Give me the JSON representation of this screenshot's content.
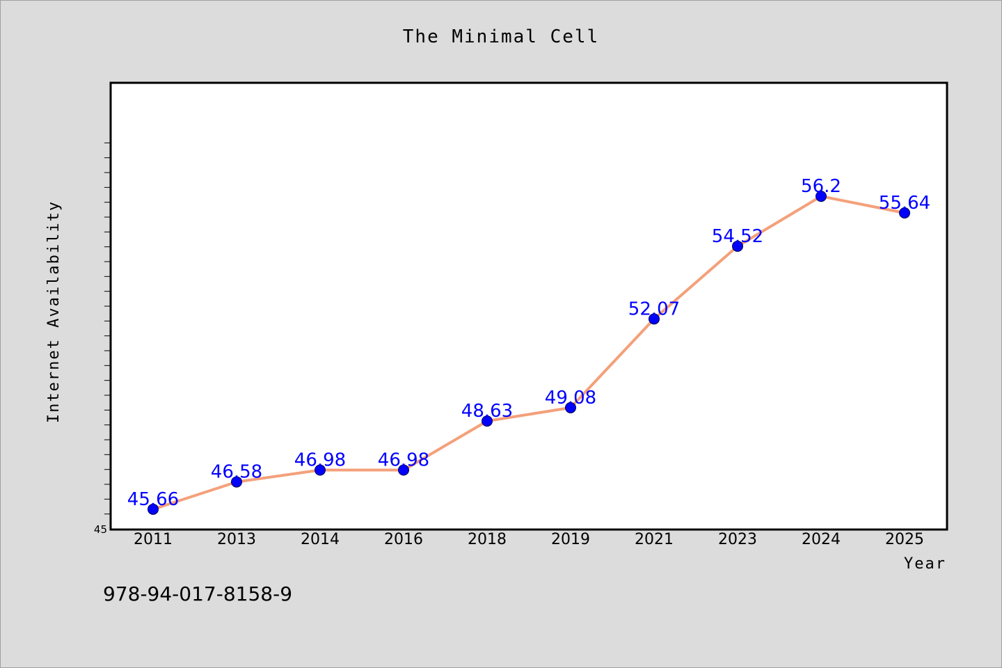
{
  "chart_data": {
    "type": "line",
    "title": "The Minimal Cell",
    "xlabel": "Year",
    "ylabel": "Internet Availability",
    "categories": [
      "2011",
      "2013",
      "2014",
      "2016",
      "2018",
      "2019",
      "2021",
      "2023",
      "2024",
      "2025"
    ],
    "series": [
      {
        "values": [
          45.66,
          46.58,
          46.98,
          46.98,
          48.63,
          49.08,
          52.07,
          54.52,
          56.2,
          55.64
        ],
        "labels": [
          "45.66",
          "46.58",
          "46.98",
          "46.98",
          "48.63",
          "49.08",
          "52.07",
          "54.52",
          "56.2",
          "55.64"
        ]
      }
    ],
    "ylim": [
      45,
      60
    ],
    "yticks_labeled": [
      "45"
    ],
    "line_color": "#f4a07a",
    "marker_color": "#0000ff",
    "label_color": "#0000ff",
    "plot_background": "#ffffff",
    "page_background": "#dcdcdc",
    "grid": false,
    "legend": "none"
  },
  "footer": {
    "isbn": "978-94-017-8158-9"
  }
}
